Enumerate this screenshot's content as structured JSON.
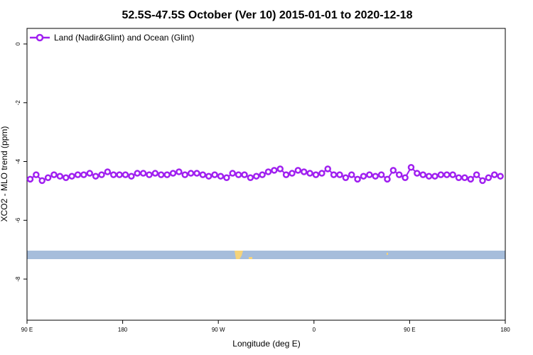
{
  "chart_data": {
    "type": "line",
    "title": "52.5S-47.5S October (Ver 10)   2015-01-01 to 2020-12-18",
    "xlabel": "Longitude (deg E)",
    "ylabel": "XCO2 - MLO trend (ppm)",
    "x": [
      93,
      98.6,
      104.2,
      109.8,
      115.4,
      121,
      126.6,
      132.2,
      137.8,
      143.4,
      149,
      154.6,
      160.2,
      165.8,
      171.4,
      177,
      182.6,
      188.2,
      193.8,
      199.4,
      205,
      210.6,
      216.2,
      221.8,
      227.4,
      233,
      238.6,
      244.2,
      249.8,
      255.4,
      261,
      266.6,
      272.2,
      277.8,
      283.4,
      289,
      294.6,
      300.2,
      305.8,
      311.4,
      317,
      322.6,
      328.2,
      333.8,
      339.4,
      345,
      350.6,
      356.2,
      361.8,
      367.4,
      373,
      378.6,
      384.2,
      389.8,
      395.4,
      401,
      406.6,
      412.2,
      417.8,
      423.4,
      429,
      434.6,
      440.2,
      445.8,
      451.4,
      457,
      462.6,
      468.2,
      473.8,
      479.4,
      485,
      490.6,
      496.2,
      501.8,
      507.4,
      513,
      518.6,
      524.2,
      529.8,
      535.4
    ],
    "series": [
      {
        "name": "Land (Nadir&Glint) and Ocean (Glint)",
        "color": "#a020f0",
        "values": [
          -4.6,
          -4.45,
          -4.65,
          -4.55,
          -4.45,
          -4.5,
          -4.55,
          -4.5,
          -4.45,
          -4.45,
          -4.4,
          -4.5,
          -4.45,
          -4.35,
          -4.45,
          -4.45,
          -4.45,
          -4.5,
          -4.4,
          -4.4,
          -4.45,
          -4.4,
          -4.45,
          -4.45,
          -4.4,
          -4.35,
          -4.45,
          -4.4,
          -4.4,
          -4.45,
          -4.5,
          -4.45,
          -4.5,
          -4.55,
          -4.4,
          -4.45,
          -4.45,
          -4.55,
          -4.5,
          -4.45,
          -4.35,
          -4.3,
          -4.25,
          -4.45,
          -4.4,
          -4.3,
          -4.35,
          -4.4,
          -4.45,
          -4.4,
          -4.25,
          -4.45,
          -4.45,
          -4.55,
          -4.45,
          -4.6,
          -4.5,
          -4.45,
          -4.5,
          -4.45,
          -4.6,
          -4.3,
          -4.45,
          -4.55,
          -4.2,
          -4.4,
          -4.45,
          -4.5,
          -4.5,
          -4.45,
          -4.45,
          -4.45,
          -4.55,
          -4.55,
          -4.6,
          -4.45,
          -4.65,
          -4.55,
          -4.45,
          -4.5
        ]
      }
    ],
    "xlim": [
      90,
      540
    ],
    "xticks": [
      {
        "value": 90,
        "label": "90 E"
      },
      180,
      {
        "value": 270,
        "label": "90 W"
      },
      {
        "value": 360,
        "label": "0"
      },
      {
        "value": 450,
        "label": "90 E"
      },
      {
        "value": 540,
        "label": "180"
      }
    ],
    "ylim": [
      -9.4,
      0.53
    ],
    "yticks": [
      0,
      -2,
      -4,
      -6,
      -8
    ],
    "legend": "top-left"
  }
}
